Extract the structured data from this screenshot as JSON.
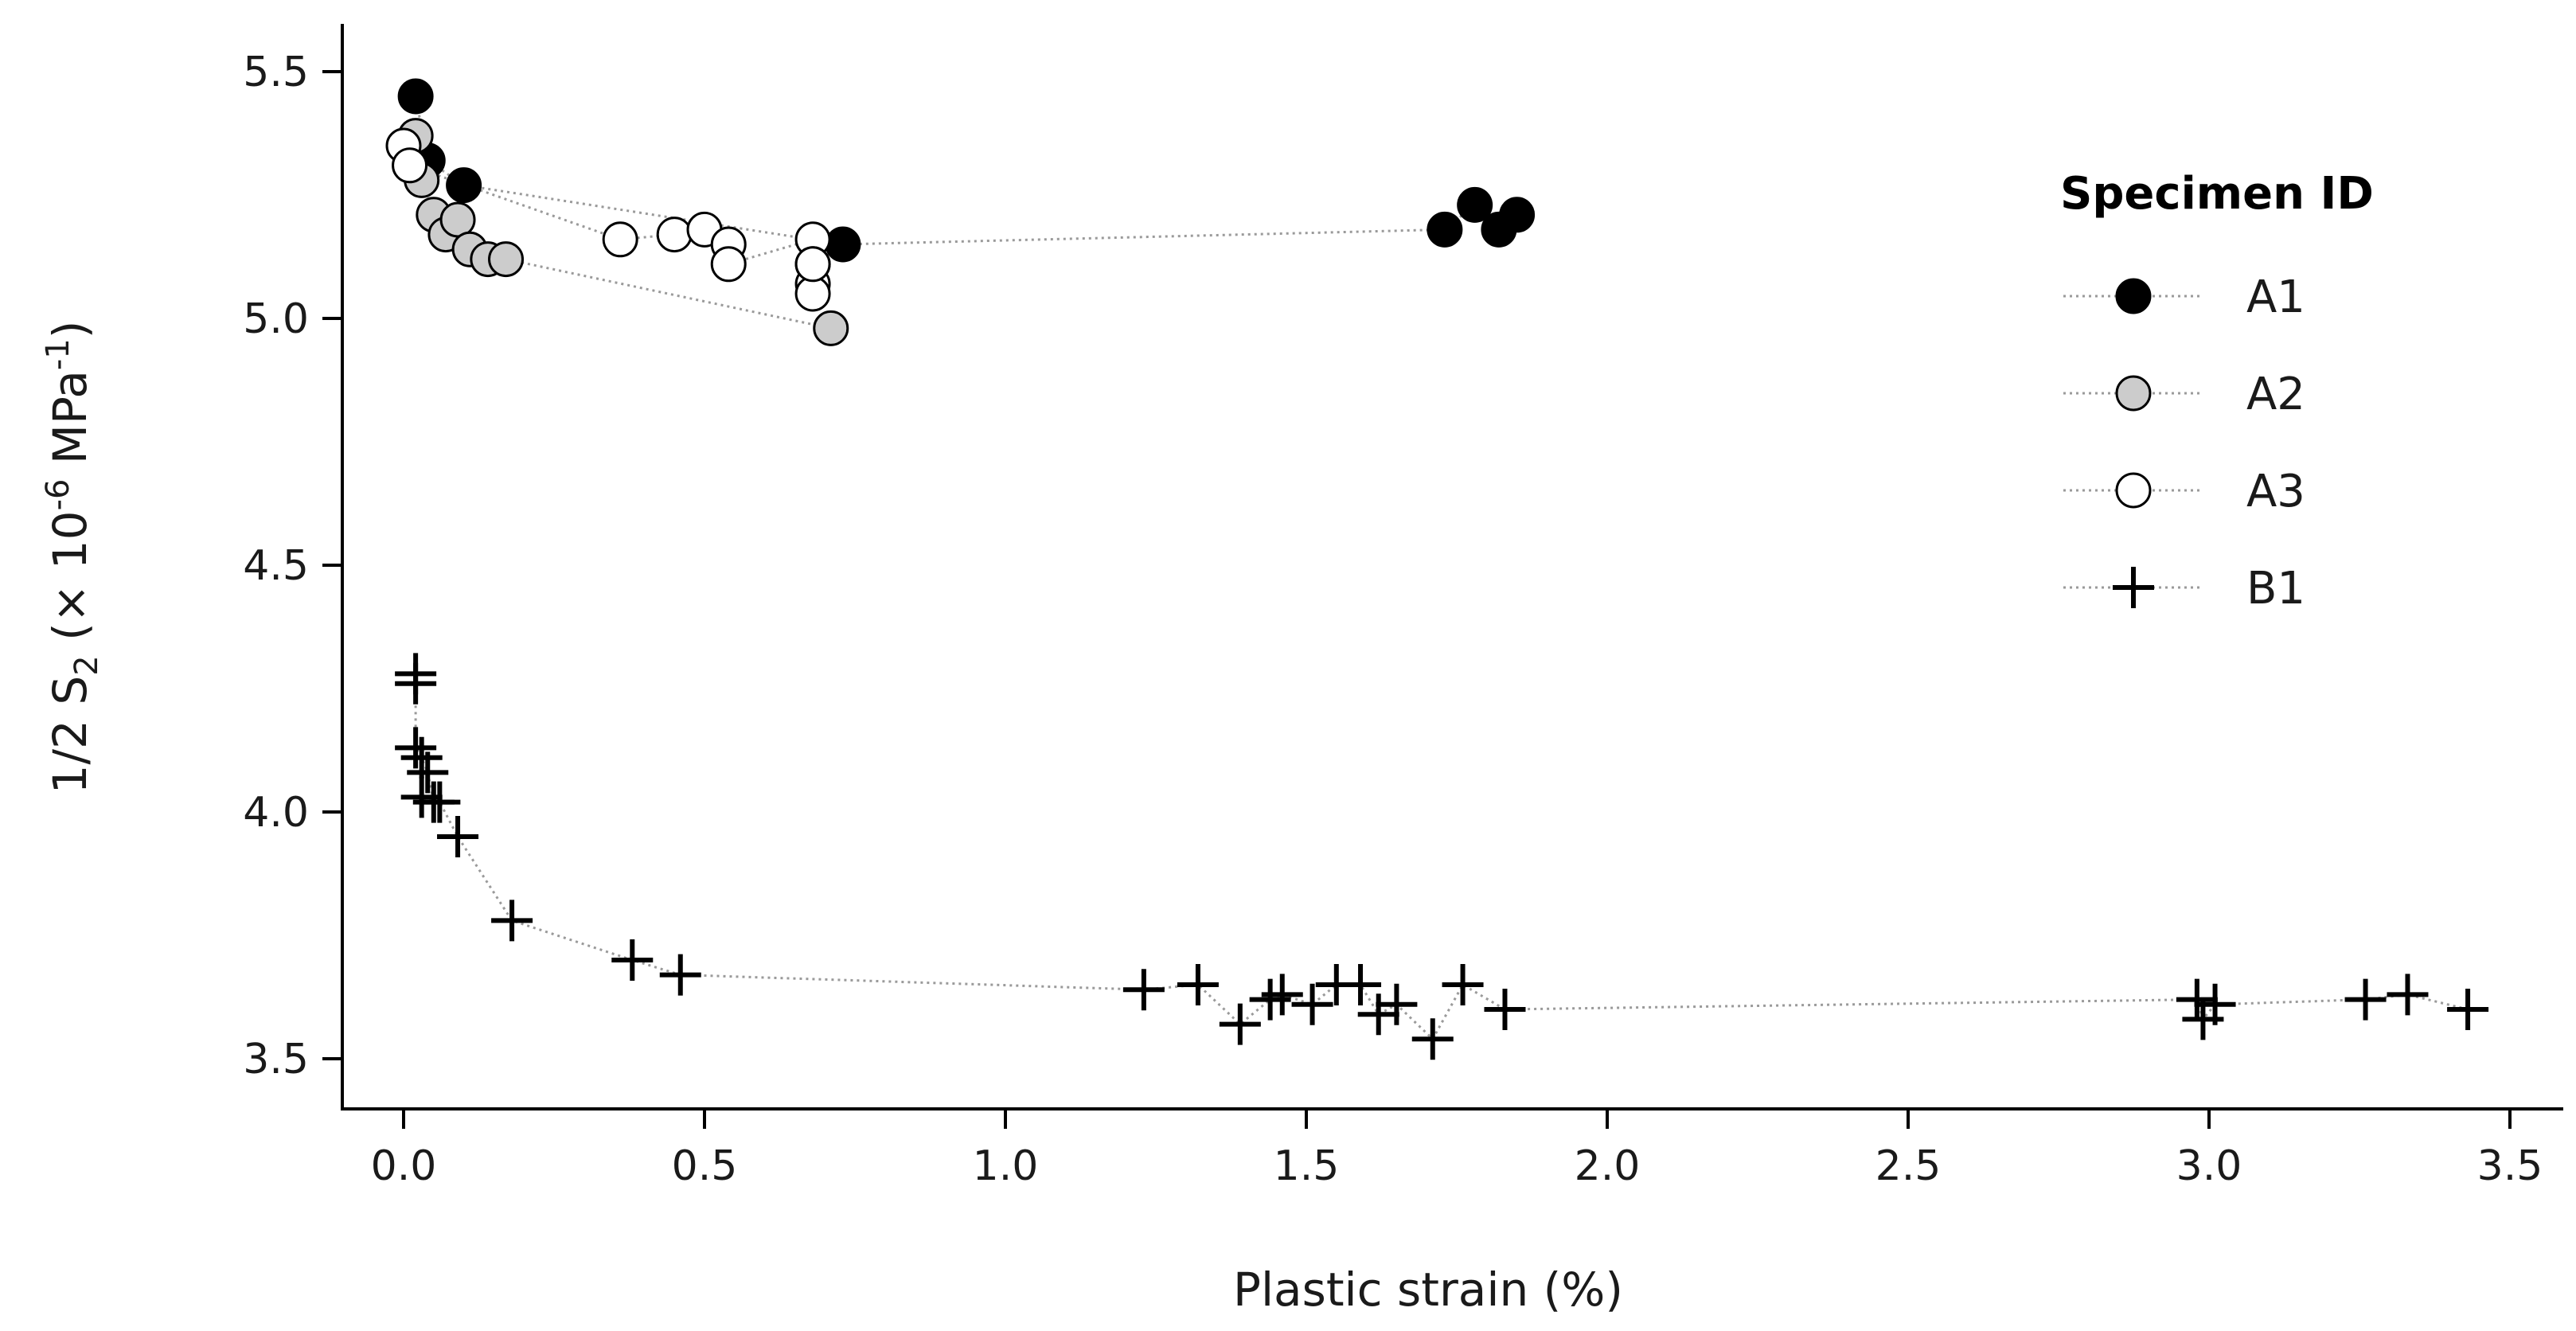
{
  "chart_data": {
    "type": "scatter",
    "xlabel": "Plastic strain (%)",
    "ylabel": {
      "base": "1/2 S",
      "sub": "2",
      "rest": " (× 10",
      "sup": "-6",
      "unit": " MPa",
      "unit_sup": "-1",
      "close": ")"
    },
    "xlim": [
      -0.1,
      3.6
    ],
    "ylim": [
      3.4,
      5.6
    ],
    "xticks": [
      0.0,
      0.5,
      1.0,
      1.5,
      2.0,
      2.5,
      3.0,
      3.5
    ],
    "xtick_labels": [
      "0.0",
      "0.5",
      "1.0",
      "1.5",
      "2.0",
      "2.5",
      "3.0",
      "3.5"
    ],
    "yticks": [
      3.5,
      4.0,
      4.5,
      5.0,
      5.5
    ],
    "ytick_labels": [
      "3.5",
      "4.0",
      "4.5",
      "5.0",
      "5.5"
    ],
    "grid": false,
    "legend_title": "Specimen ID",
    "legend_position": "top-right",
    "series": [
      {
        "name": "A1",
        "marker": "filled-circle",
        "fill": "#000000",
        "x": [
          0.02,
          0.04,
          0.1,
          0.73,
          1.73,
          1.78,
          1.82,
          1.85
        ],
        "y": [
          5.45,
          5.32,
          5.27,
          5.15,
          5.18,
          5.23,
          5.18,
          5.21
        ]
      },
      {
        "name": "A2",
        "marker": "filled-circle",
        "fill": "#cccccc",
        "x": [
          0.02,
          0.03,
          0.05,
          0.07,
          0.09,
          0.11,
          0.14,
          0.17,
          0.71
        ],
        "y": [
          5.37,
          5.28,
          5.21,
          5.17,
          5.2,
          5.14,
          5.12,
          5.12,
          4.98
        ]
      },
      {
        "name": "A3",
        "marker": "open-circle",
        "fill": "#ffffff",
        "x": [
          0.0,
          0.01,
          0.36,
          0.45,
          0.5,
          0.54,
          0.54,
          0.68,
          0.68,
          0.68,
          0.68,
          0.68
        ],
        "y": [
          5.35,
          5.31,
          5.16,
          5.17,
          5.18,
          5.15,
          5.11,
          5.16,
          5.11,
          5.07,
          5.05,
          5.11
        ]
      },
      {
        "name": "B1",
        "marker": "plus",
        "fill": "#000000",
        "x": [
          0.02,
          0.02,
          0.02,
          0.03,
          0.04,
          0.05,
          0.03,
          0.06,
          0.09,
          0.18,
          0.38,
          0.46,
          1.23,
          1.32,
          1.39,
          1.44,
          1.46,
          1.51,
          1.55,
          1.59,
          1.62,
          1.65,
          1.71,
          1.76,
          1.83,
          2.98,
          2.99,
          3.01,
          3.26,
          3.33,
          3.43
        ],
        "y": [
          4.28,
          4.26,
          4.13,
          4.11,
          4.08,
          4.02,
          4.03,
          4.02,
          3.95,
          3.78,
          3.7,
          3.67,
          3.64,
          3.65,
          3.57,
          3.62,
          3.63,
          3.61,
          3.65,
          3.65,
          3.59,
          3.61,
          3.54,
          3.65,
          3.6,
          3.62,
          3.58,
          3.61,
          3.62,
          3.63,
          3.6
        ]
      }
    ]
  }
}
